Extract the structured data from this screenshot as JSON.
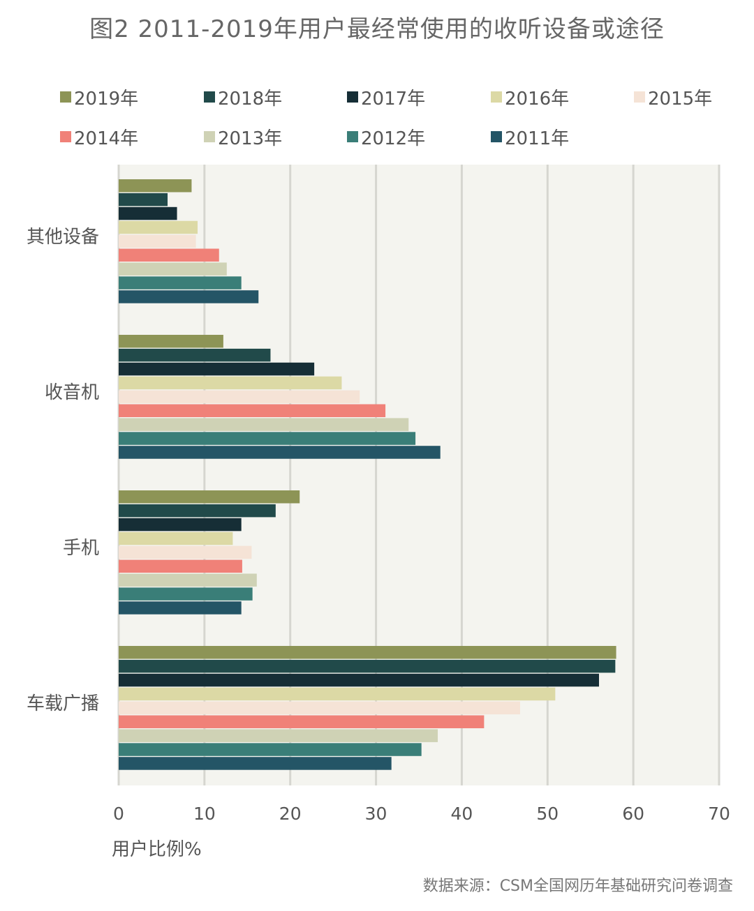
{
  "title": "图2 2011-2019年用户最经常使用的收听设备或途径",
  "source": "数据来源：CSM全国网历年基础研究问卷调查",
  "chart_data": {
    "type": "bar",
    "orientation": "horizontal",
    "categories": [
      "其他设备",
      "收音机",
      "手机",
      "车载广播"
    ],
    "series": [
      {
        "name": "2019年",
        "color": "#8d9456",
        "values": [
          8.5,
          12.2,
          21.1,
          58.0
        ]
      },
      {
        "name": "2018年",
        "color": "#214a4a",
        "values": [
          5.7,
          17.7,
          18.3,
          57.9
        ]
      },
      {
        "name": "2017年",
        "color": "#162e36",
        "values": [
          6.8,
          22.8,
          14.3,
          56.0
        ]
      },
      {
        "name": "2016年",
        "color": "#dcd9a5",
        "values": [
          9.2,
          26.0,
          13.3,
          50.9
        ]
      },
      {
        "name": "2015年",
        "color": "#f5e3d6",
        "values": [
          9.0,
          28.1,
          15.5,
          46.8
        ]
      },
      {
        "name": "2014年",
        "color": "#f08178",
        "values": [
          11.7,
          31.1,
          14.4,
          42.6
        ]
      },
      {
        "name": "2013年",
        "color": "#cfd2b5",
        "values": [
          12.6,
          33.8,
          16.1,
          37.2
        ]
      },
      {
        "name": "2012年",
        "color": "#3a7e78",
        "values": [
          14.3,
          34.6,
          15.6,
          35.3
        ]
      },
      {
        "name": "2011年",
        "color": "#245566",
        "values": [
          16.3,
          37.5,
          14.3,
          31.8
        ]
      }
    ],
    "xlabel": "用户比例%",
    "xlim": [
      0,
      70
    ],
    "xticks": [
      0,
      10,
      20,
      30,
      40,
      50,
      60,
      70
    ],
    "grid": true,
    "legend_position": "top",
    "plot_background": "#f4f4ef",
    "grid_color": "#d6d6d0"
  }
}
